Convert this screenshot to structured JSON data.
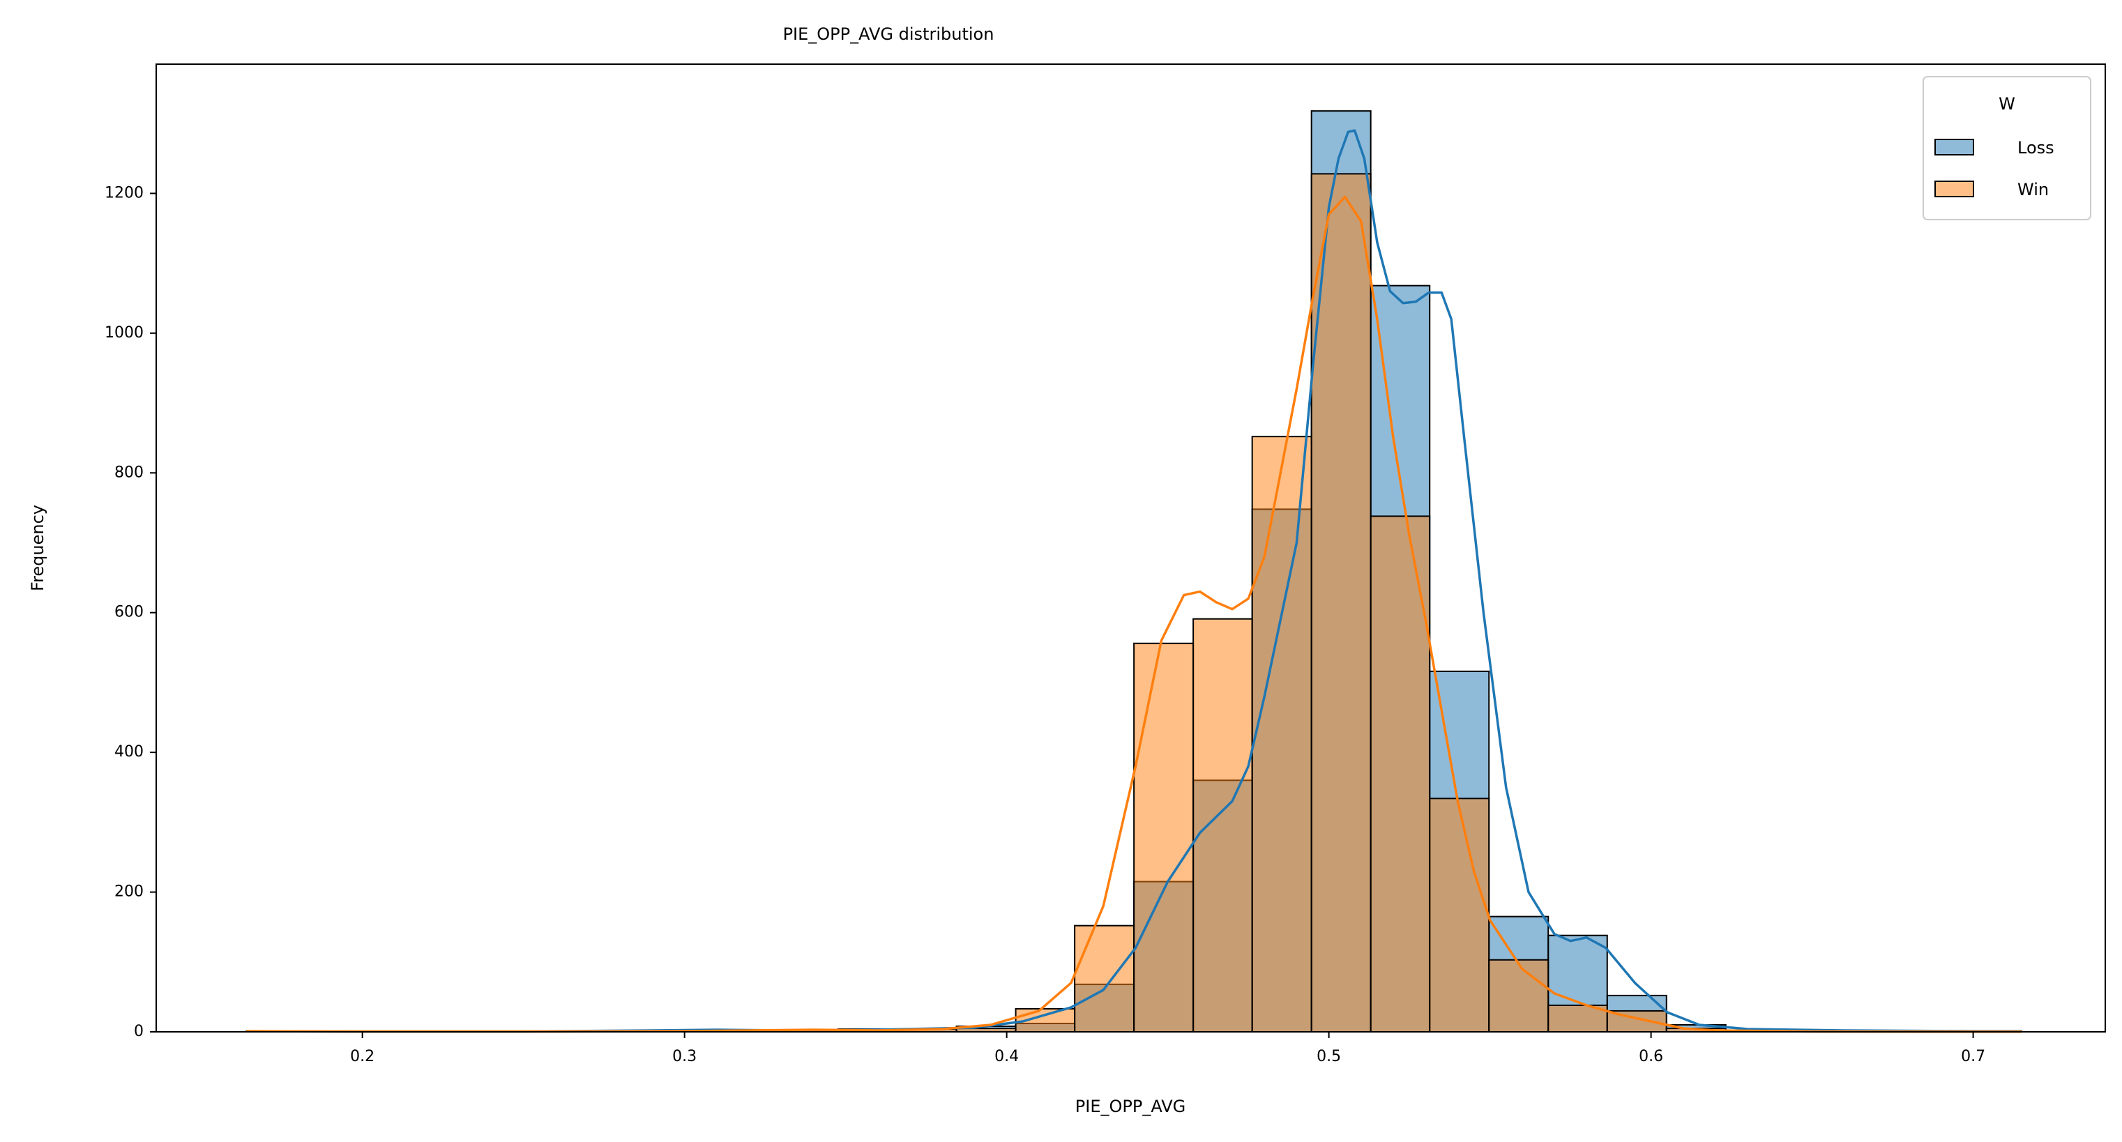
{
  "chart_data": {
    "type": "bar",
    "title": "PIE_OPP_AVG distribution",
    "xlabel": "PIE_OPP_AVG",
    "ylabel": "Frequency",
    "xlim": [
      0.136,
      0.741
    ],
    "ylim": [
      0,
      1385
    ],
    "xticks": [
      0.2,
      0.3,
      0.4,
      0.5,
      0.6,
      0.7
    ],
    "xtick_labels": [
      "0.2",
      "0.3",
      "0.4",
      "0.5",
      "0.6",
      "0.7"
    ],
    "yticks": [
      0,
      200,
      400,
      600,
      800,
      1000,
      1200
    ],
    "ytick_labels": [
      "0",
      "200",
      "400",
      "600",
      "800",
      "1000",
      "1200"
    ],
    "grid": false,
    "legend": {
      "title": "W",
      "position": "top-right",
      "entries": [
        "Loss",
        "Win"
      ]
    },
    "bin_edges": [
      0.164,
      0.1824,
      0.2007,
      0.2191,
      0.2375,
      0.2558,
      0.2742,
      0.2926,
      0.3109,
      0.3293,
      0.3477,
      0.366,
      0.3844,
      0.4028,
      0.4211,
      0.4395,
      0.4579,
      0.4762,
      0.4946,
      0.513,
      0.5313,
      0.5497,
      0.5681,
      0.5864,
      0.6048,
      0.6232,
      0.6415,
      0.6599,
      0.6783,
      0.6966,
      0.715
    ],
    "series": [
      {
        "name": "Loss",
        "color": "#1f77b4",
        "fill": "#8fbbd9",
        "counts": [
          1,
          0,
          0,
          0,
          0,
          0,
          0,
          2,
          3,
          2,
          1,
          4,
          8,
          12,
          68,
          215,
          360,
          748,
          1318,
          1068,
          516,
          165,
          138,
          52,
          10,
          2,
          1,
          1,
          0,
          1
        ],
        "kde": [
          [
            0.164,
            1
          ],
          [
            0.2,
            0.5
          ],
          [
            0.25,
            0.5
          ],
          [
            0.29,
            2
          ],
          [
            0.31,
            3
          ],
          [
            0.33,
            2
          ],
          [
            0.36,
            3
          ],
          [
            0.39,
            6
          ],
          [
            0.405,
            15
          ],
          [
            0.42,
            35
          ],
          [
            0.43,
            60
          ],
          [
            0.44,
            120
          ],
          [
            0.45,
            215
          ],
          [
            0.46,
            285
          ],
          [
            0.47,
            330
          ],
          [
            0.475,
            380
          ],
          [
            0.48,
            480
          ],
          [
            0.49,
            700
          ],
          [
            0.495,
            950
          ],
          [
            0.5,
            1180
          ],
          [
            0.503,
            1250
          ],
          [
            0.506,
            1288
          ],
          [
            0.508,
            1290
          ],
          [
            0.511,
            1250
          ],
          [
            0.515,
            1130
          ],
          [
            0.519,
            1060
          ],
          [
            0.523,
            1043
          ],
          [
            0.527,
            1045
          ],
          [
            0.531,
            1058
          ],
          [
            0.535,
            1058
          ],
          [
            0.538,
            1020
          ],
          [
            0.542,
            850
          ],
          [
            0.548,
            600
          ],
          [
            0.555,
            350
          ],
          [
            0.562,
            200
          ],
          [
            0.57,
            140
          ],
          [
            0.575,
            130
          ],
          [
            0.58,
            135
          ],
          [
            0.586,
            120
          ],
          [
            0.595,
            70
          ],
          [
            0.605,
            28
          ],
          [
            0.615,
            10
          ],
          [
            0.63,
            4
          ],
          [
            0.66,
            2
          ],
          [
            0.7,
            1
          ],
          [
            0.715,
            1
          ]
        ]
      },
      {
        "name": "Win",
        "color": "#ff7f0e",
        "fill": "#ffbf86",
        "counts": [
          1,
          0,
          0,
          0,
          0,
          0,
          0,
          0,
          0,
          2,
          4,
          4,
          5,
          33,
          152,
          556,
          591,
          852,
          1228,
          738,
          334,
          103,
          38,
          30,
          5,
          1,
          0,
          0,
          0,
          0
        ],
        "kde": [
          [
            0.164,
            1
          ],
          [
            0.2,
            0.5
          ],
          [
            0.26,
            0.5
          ],
          [
            0.3,
            1
          ],
          [
            0.34,
            3
          ],
          [
            0.36,
            2
          ],
          [
            0.38,
            4
          ],
          [
            0.395,
            10
          ],
          [
            0.41,
            30
          ],
          [
            0.42,
            70
          ],
          [
            0.43,
            180
          ],
          [
            0.44,
            380
          ],
          [
            0.448,
            560
          ],
          [
            0.455,
            625
          ],
          [
            0.46,
            630
          ],
          [
            0.465,
            615
          ],
          [
            0.47,
            605
          ],
          [
            0.475,
            620
          ],
          [
            0.48,
            680
          ],
          [
            0.485,
            800
          ],
          [
            0.49,
            920
          ],
          [
            0.495,
            1050
          ],
          [
            0.5,
            1170
          ],
          [
            0.505,
            1195
          ],
          [
            0.51,
            1160
          ],
          [
            0.515,
            1020
          ],
          [
            0.52,
            850
          ],
          [
            0.525,
            710
          ],
          [
            0.53,
            590
          ],
          [
            0.535,
            460
          ],
          [
            0.54,
            330
          ],
          [
            0.545,
            230
          ],
          [
            0.55,
            160
          ],
          [
            0.56,
            90
          ],
          [
            0.57,
            55
          ],
          [
            0.58,
            38
          ],
          [
            0.59,
            25
          ],
          [
            0.6,
            15
          ],
          [
            0.61,
            5
          ],
          [
            0.62,
            2
          ],
          [
            0.65,
            0.5
          ],
          [
            0.715,
            0.2
          ]
        ]
      }
    ]
  }
}
